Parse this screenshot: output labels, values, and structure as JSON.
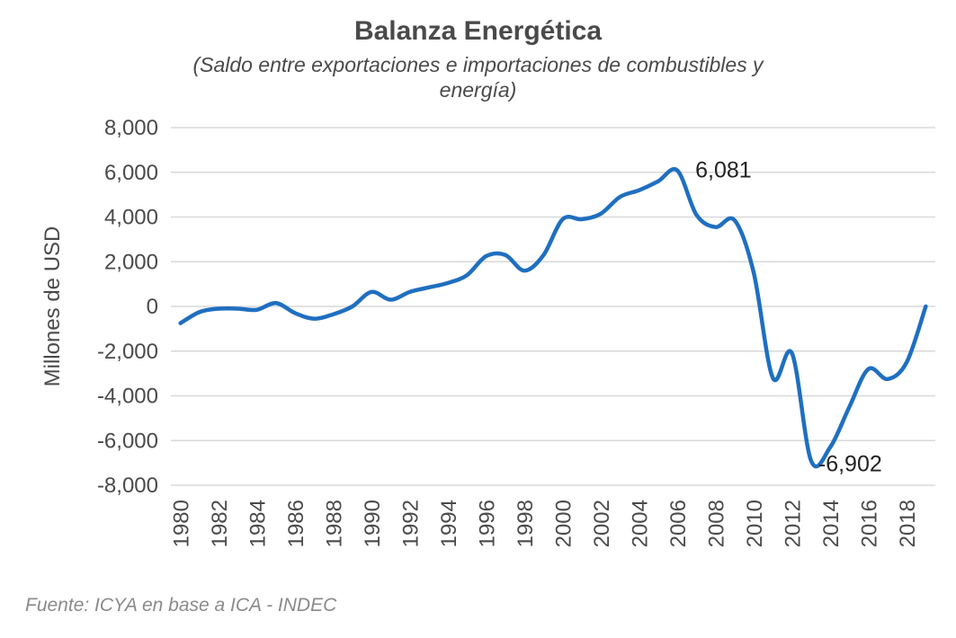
{
  "chart_data": {
    "type": "line",
    "title": "Balanza Energética",
    "subtitle": "(Saldo entre exportaciones e importaciones de combustibles y energía)",
    "ylabel": "Millones de USD",
    "xlabel": "",
    "ylim": [
      -8000,
      8000
    ],
    "yticks": [
      8000,
      6000,
      4000,
      2000,
      0,
      -2000,
      -4000,
      -6000,
      -8000
    ],
    "ytick_labels": [
      "8,000",
      "6,000",
      "4,000",
      "2,000",
      "0",
      "-2,000",
      "-4,000",
      "-6,000",
      "-8,000"
    ],
    "xticks": [
      "1980",
      "1982",
      "1984",
      "1986",
      "1988",
      "1990",
      "1992",
      "1994",
      "1996",
      "1998",
      "2000",
      "2002",
      "2004",
      "2006",
      "2008",
      "2010",
      "2012",
      "2014",
      "2016",
      "2018"
    ],
    "grid": true,
    "series": [
      {
        "name": "",
        "color": "#1f6fc0",
        "x": [
          1980,
          1981,
          1982,
          1983,
          1984,
          1985,
          1986,
          1987,
          1988,
          1989,
          1990,
          1991,
          1992,
          1993,
          1994,
          1995,
          1996,
          1997,
          1998,
          1999,
          2000,
          2001,
          2002,
          2003,
          2004,
          2005,
          2006,
          2007,
          2008,
          2009,
          2010,
          2011,
          2012,
          2013,
          2014,
          2015,
          2016,
          2017,
          2018,
          2019
        ],
        "values": [
          -750,
          -250,
          -100,
          -100,
          -150,
          150,
          -300,
          -550,
          -350,
          0,
          650,
          300,
          650,
          850,
          1050,
          1400,
          2250,
          2300,
          1600,
          2300,
          3900,
          3900,
          4150,
          4900,
          5200,
          5600,
          6081,
          4100,
          3550,
          3850,
          1500,
          -3200,
          -2100,
          -6902,
          -6300,
          -4500,
          -2800,
          -3250,
          -2500,
          0
        ]
      }
    ],
    "annotations": [
      {
        "label": "6,081",
        "x": 2006,
        "y": 6081
      },
      {
        "label": "-6,902",
        "x": 2013,
        "y": -6902
      }
    ]
  },
  "footer": {
    "source": "Fuente: ICYA en base a ICA - INDEC"
  }
}
